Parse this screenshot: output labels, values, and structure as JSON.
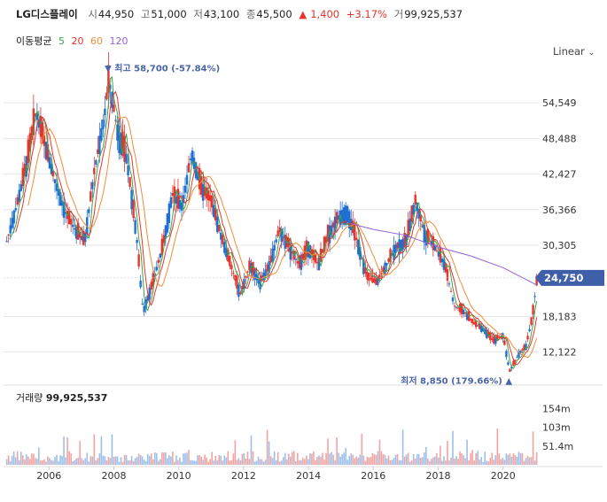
{
  "header": {
    "name": "LG디스플레이",
    "open_label": "시",
    "open": "44,950",
    "high_label": "고",
    "high": "51,000",
    "low_label": "저",
    "low": "43,100",
    "close_label": "종",
    "close": "45,500",
    "change_arrow": "▲",
    "change": "1,400",
    "change_pct": "+3.17%",
    "volume_label": "거",
    "volume": "99,925,537"
  },
  "ma_legend": {
    "title": "이동평균",
    "p5": "5",
    "p20": "20",
    "p60": "60",
    "p120": "120"
  },
  "scale_toggle": {
    "label": "Linear",
    "icon": "chevron-down-icon"
  },
  "annotations": {
    "max": "▼ 최고 58,700 (-57.84%)",
    "min": "최저 8,850 (179.66%) ▲",
    "current": "24,750"
  },
  "volume_panel": {
    "label": "거래량",
    "value": "99,925,537"
  },
  "colors": {
    "up": "#e8332c",
    "down": "#1f6fd1",
    "ma5": "#3aa54a",
    "ma20": "#e8332c",
    "ma60": "#f08c38",
    "ma120": "#8f63d6",
    "current_bg": "#3f5fa8",
    "grid": "#e6e6e6"
  },
  "chart_data": {
    "type": "candlestick",
    "price_axis_ticks": [
      "54,549",
      "48,488",
      "42,427",
      "36,366",
      "30,305",
      "24,750",
      "18,183",
      "12,122"
    ],
    "price_axis_values": [
      54549,
      48488,
      42427,
      36366,
      30305,
      24750,
      18183,
      12122
    ],
    "volume_axis_ticks": [
      "154m",
      "103m",
      "51.4m"
    ],
    "volume_axis_values": [
      154,
      103,
      51.4
    ],
    "x_ticks": [
      "2006",
      "2008",
      "2010",
      "2012",
      "2014",
      "2016",
      "2018",
      "2020"
    ],
    "x_tick_years": [
      2006,
      2008,
      2010,
      2012,
      2014,
      2016,
      2018,
      2020
    ],
    "x_range_years": [
      2004.6,
      2021.1
    ],
    "ylim": [
      8000,
      60000
    ],
    "max_point": {
      "year": 2007.8,
      "value": 58700
    },
    "min_point": {
      "year": 2020.2,
      "value": 8850
    },
    "last_value": 24750,
    "price_series": [
      {
        "year": 2004.7,
        "price": 31000
      },
      {
        "year": 2005.0,
        "price": 37000
      },
      {
        "year": 2005.3,
        "price": 44000
      },
      {
        "year": 2005.6,
        "price": 53000
      },
      {
        "year": 2005.9,
        "price": 47000
      },
      {
        "year": 2006.2,
        "price": 41000
      },
      {
        "year": 2006.5,
        "price": 36000
      },
      {
        "year": 2006.8,
        "price": 33000
      },
      {
        "year": 2007.1,
        "price": 31000
      },
      {
        "year": 2007.4,
        "price": 43000
      },
      {
        "year": 2007.7,
        "price": 52000
      },
      {
        "year": 2007.85,
        "price": 58700
      },
      {
        "year": 2008.1,
        "price": 50000
      },
      {
        "year": 2008.4,
        "price": 45000
      },
      {
        "year": 2008.7,
        "price": 32000
      },
      {
        "year": 2008.9,
        "price": 19000
      },
      {
        "year": 2009.2,
        "price": 24000
      },
      {
        "year": 2009.5,
        "price": 30000
      },
      {
        "year": 2009.8,
        "price": 39000
      },
      {
        "year": 2010.1,
        "price": 37000
      },
      {
        "year": 2010.4,
        "price": 46000
      },
      {
        "year": 2010.7,
        "price": 40000
      },
      {
        "year": 2011.0,
        "price": 38000
      },
      {
        "year": 2011.3,
        "price": 32000
      },
      {
        "year": 2011.6,
        "price": 27000
      },
      {
        "year": 2011.9,
        "price": 22000
      },
      {
        "year": 2012.2,
        "price": 27000
      },
      {
        "year": 2012.5,
        "price": 24000
      },
      {
        "year": 2012.8,
        "price": 27000
      },
      {
        "year": 2013.1,
        "price": 33000
      },
      {
        "year": 2013.4,
        "price": 30000
      },
      {
        "year": 2013.7,
        "price": 27000
      },
      {
        "year": 2014.0,
        "price": 30000
      },
      {
        "year": 2014.3,
        "price": 27000
      },
      {
        "year": 2014.6,
        "price": 32000
      },
      {
        "year": 2014.9,
        "price": 35000
      },
      {
        "year": 2015.2,
        "price": 36000
      },
      {
        "year": 2015.5,
        "price": 31000
      },
      {
        "year": 2015.8,
        "price": 25000
      },
      {
        "year": 2016.1,
        "price": 24000
      },
      {
        "year": 2016.4,
        "price": 27000
      },
      {
        "year": 2016.7,
        "price": 30000
      },
      {
        "year": 2017.0,
        "price": 31000
      },
      {
        "year": 2017.3,
        "price": 38000
      },
      {
        "year": 2017.6,
        "price": 32000
      },
      {
        "year": 2017.9,
        "price": 30000
      },
      {
        "year": 2018.2,
        "price": 27000
      },
      {
        "year": 2018.5,
        "price": 20000
      },
      {
        "year": 2018.8,
        "price": 19000
      },
      {
        "year": 2019.1,
        "price": 17000
      },
      {
        "year": 2019.4,
        "price": 16000
      },
      {
        "year": 2019.7,
        "price": 14000
      },
      {
        "year": 2020.0,
        "price": 15000
      },
      {
        "year": 2020.2,
        "price": 8850
      },
      {
        "year": 2020.5,
        "price": 12000
      },
      {
        "year": 2020.7,
        "price": 13000
      },
      {
        "year": 2020.9,
        "price": 18000
      },
      {
        "year": 2021.05,
        "price": 24750
      }
    ],
    "ma120_series": [
      {
        "year": 2015.3,
        "price": 34000
      },
      {
        "year": 2016.0,
        "price": 33000
      },
      {
        "year": 2017.0,
        "price": 32000
      },
      {
        "year": 2018.0,
        "price": 30000
      },
      {
        "year": 2019.0,
        "price": 28500
      },
      {
        "year": 2020.0,
        "price": 26500
      },
      {
        "year": 2021.05,
        "price": 23500
      }
    ]
  }
}
